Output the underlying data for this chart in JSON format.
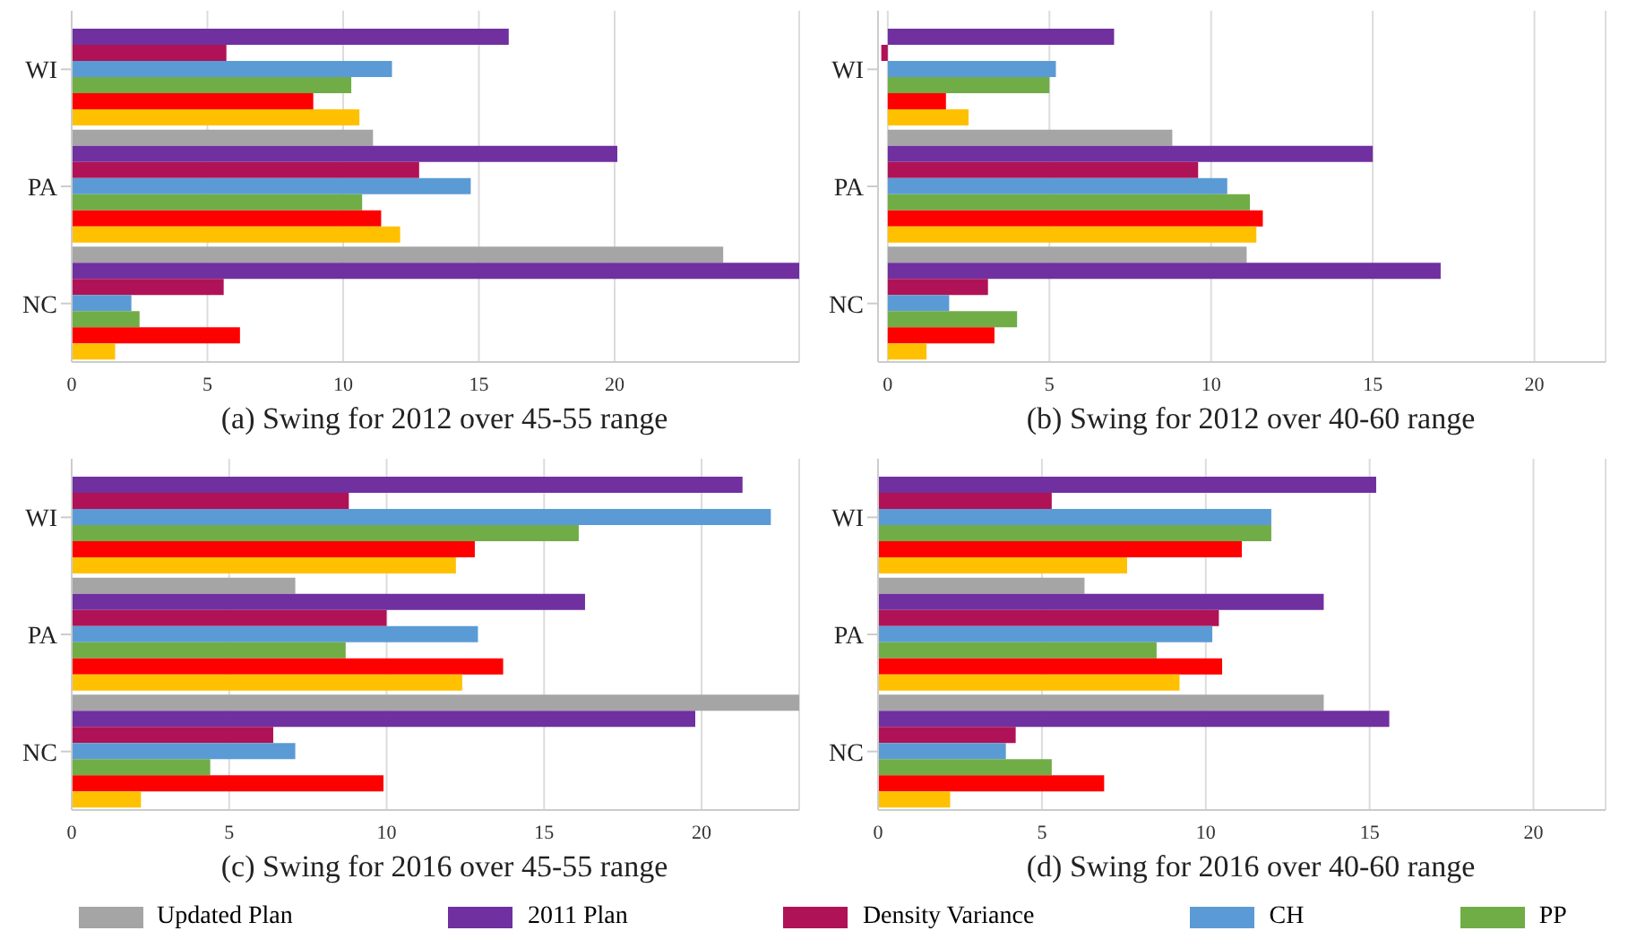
{
  "chart_data": [
    {
      "type": "bar",
      "orientation": "horizontal",
      "title": "(a) Swing for 2012 over 45-55 range",
      "categories": [
        "WI",
        "PA",
        "NC"
      ],
      "xlim": [
        0,
        26.8
      ],
      "xticks": [
        0,
        5,
        10,
        15,
        20
      ],
      "grid": "x",
      "legend": "bottom",
      "series": [
        {
          "name": "Updated Plan",
          "color": "#a5a5a5",
          "values": [
            null,
            11.1,
            24.0
          ]
        },
        {
          "name": "2011 Plan",
          "color": "#7030a0",
          "values": [
            16.1,
            20.1,
            26.8
          ]
        },
        {
          "name": "Density Variance",
          "color": "#b01257",
          "values": [
            5.7,
            12.8,
            5.6
          ]
        },
        {
          "name": "CH",
          "color": "#5b9bd5",
          "values": [
            11.8,
            14.7,
            2.2
          ]
        },
        {
          "name": "PP",
          "color": "#70ad47",
          "values": [
            10.3,
            10.7,
            2.5
          ]
        },
        {
          "color": "#ff0000",
          "values": [
            8.9,
            11.4,
            6.2
          ]
        },
        {
          "color": "#ffc000",
          "values": [
            10.6,
            12.1,
            1.6
          ]
        }
      ]
    },
    {
      "type": "bar",
      "orientation": "horizontal",
      "title": "(b) Swing for 2012 over 40-60 range",
      "categories": [
        "WI",
        "PA",
        "NC"
      ],
      "xlim": [
        -0.3,
        22.2
      ],
      "xticks": [
        0,
        5,
        10,
        15,
        20
      ],
      "grid": "x",
      "series": [
        {
          "color": "#a5a5a5",
          "values": [
            null,
            8.8,
            11.1
          ]
        },
        {
          "color": "#7030a0",
          "values": [
            7.0,
            15.0,
            17.1
          ]
        },
        {
          "color": "#b01257",
          "values": [
            -0.2,
            9.6,
            3.1
          ]
        },
        {
          "color": "#5b9bd5",
          "values": [
            5.2,
            10.5,
            1.9
          ]
        },
        {
          "color": "#70ad47",
          "values": [
            5.0,
            11.2,
            4.0
          ]
        },
        {
          "color": "#ff0000",
          "values": [
            1.8,
            11.6,
            3.3
          ]
        },
        {
          "color": "#ffc000",
          "values": [
            2.5,
            11.4,
            1.2
          ]
        }
      ]
    },
    {
      "type": "bar",
      "orientation": "horizontal",
      "title": "(c) Swing for 2016 over 45-55 range",
      "categories": [
        "WI",
        "PA",
        "NC"
      ],
      "xlim": [
        0,
        23.1
      ],
      "xticks": [
        0,
        5,
        10,
        15,
        20
      ],
      "grid": "x",
      "series": [
        {
          "color": "#a5a5a5",
          "values": [
            null,
            7.1,
            23.1
          ]
        },
        {
          "color": "#7030a0",
          "values": [
            21.3,
            16.3,
            19.8
          ]
        },
        {
          "color": "#b01257",
          "values": [
            8.8,
            10.0,
            6.4
          ]
        },
        {
          "color": "#5b9bd5",
          "values": [
            22.2,
            12.9,
            7.1
          ]
        },
        {
          "color": "#70ad47",
          "values": [
            16.1,
            8.7,
            4.4
          ]
        },
        {
          "color": "#ff0000",
          "values": [
            12.8,
            13.7,
            9.9
          ]
        },
        {
          "color": "#ffc000",
          "values": [
            12.2,
            12.4,
            2.2
          ]
        }
      ]
    },
    {
      "type": "bar",
      "orientation": "horizontal",
      "title": "(d) Swing for 2016 over 40-60 range",
      "categories": [
        "WI",
        "PA",
        "NC"
      ],
      "xlim": [
        0,
        22.2
      ],
      "xticks": [
        0,
        5,
        10,
        15,
        20
      ],
      "grid": "x",
      "series": [
        {
          "color": "#a5a5a5",
          "values": [
            null,
            6.3,
            13.6
          ]
        },
        {
          "color": "#7030a0",
          "values": [
            15.2,
            13.6,
            15.6
          ]
        },
        {
          "color": "#b01257",
          "values": [
            5.3,
            10.4,
            4.2
          ]
        },
        {
          "color": "#5b9bd5",
          "values": [
            12.0,
            10.2,
            3.9
          ]
        },
        {
          "color": "#70ad47",
          "values": [
            12.0,
            8.5,
            5.3
          ]
        },
        {
          "color": "#ff0000",
          "values": [
            11.1,
            10.5,
            6.9
          ]
        },
        {
          "color": "#ffc000",
          "values": [
            7.6,
            9.2,
            2.2
          ]
        }
      ]
    }
  ]
}
